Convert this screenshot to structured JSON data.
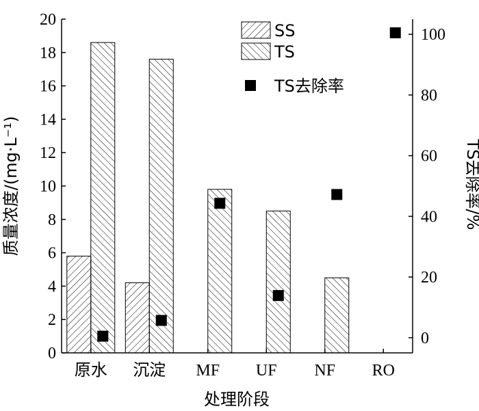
{
  "chart_data": {
    "type": "bar",
    "categories": [
      "原水",
      "沉淀",
      "MF",
      "UF",
      "NF",
      "RO"
    ],
    "xlabel": "处理阶段",
    "ylabel": "质量浓度/(mg·L⁻¹)",
    "y2label": "TS去除率/%",
    "ylim": [
      0,
      20
    ],
    "y2lim": [
      -5,
      105
    ],
    "yticks": [
      "0",
      "2",
      "4",
      "6",
      "8",
      "10",
      "12",
      "14",
      "16",
      "18",
      "20"
    ],
    "y2ticks": [
      "0",
      "20",
      "40",
      "60",
      "80",
      "100"
    ],
    "series": [
      {
        "name": "SS",
        "kind": "bar",
        "axis": "left",
        "values": [
          5.8,
          4.2,
          null,
          null,
          null,
          null
        ]
      },
      {
        "name": "TS",
        "kind": "bar",
        "axis": "left",
        "values": [
          18.6,
          17.6,
          9.8,
          8.5,
          4.5,
          null
        ]
      },
      {
        "name": "TS去除率",
        "kind": "scatter",
        "axis": "right",
        "values": [
          0.5,
          5.7,
          44.3,
          13.9,
          47.2,
          100.5
        ]
      }
    ],
    "legend_placement": "top-center",
    "grid": false
  }
}
